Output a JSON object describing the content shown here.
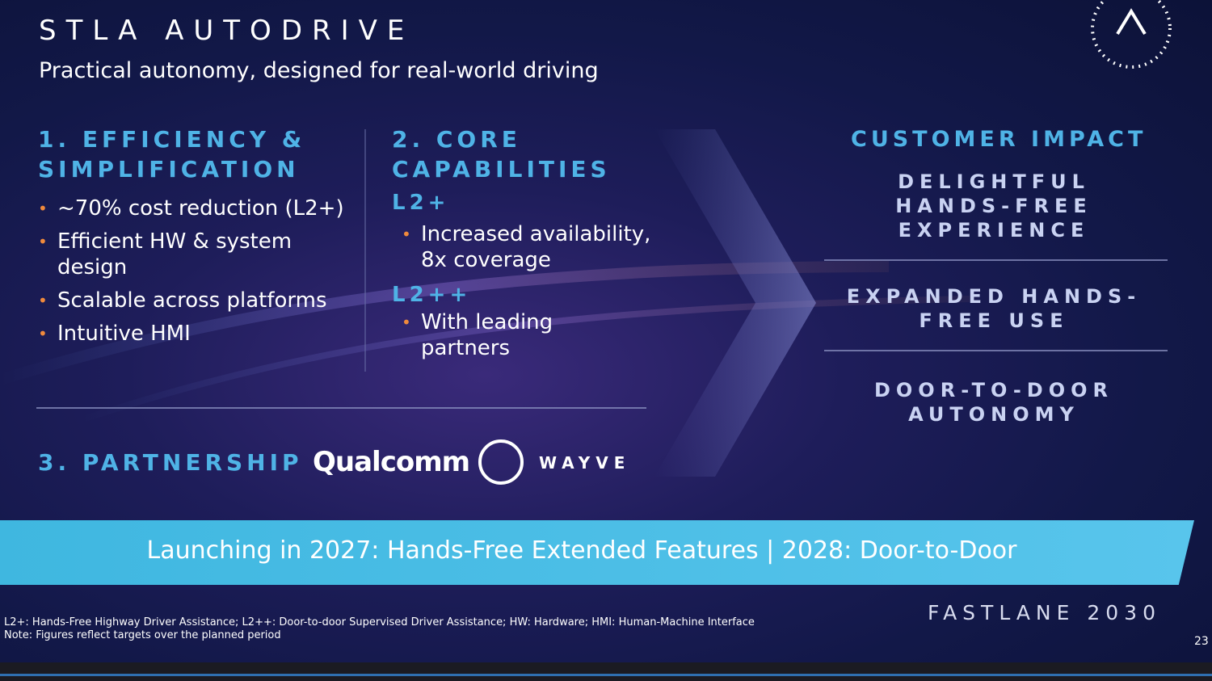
{
  "header": {
    "title": "STLA AUTODRIVE",
    "subtitle": "Practical autonomy, designed for real-world driving"
  },
  "sections": [
    {
      "heading": "1. EFFICIENCY & SIMPLIFICATION",
      "bullets": [
        "~70% cost reduction (L2+)",
        "Efficient HW & system design",
        "Scalable across platforms",
        "Intuitive HMI"
      ]
    },
    {
      "heading": "2. CORE CAPABILITIES",
      "levels": [
        {
          "label": "L2+",
          "bullets": [
            "Increased availability, 8x coverage"
          ]
        },
        {
          "label": "L2++",
          "bullets": [
            "With leading partners"
          ]
        }
      ]
    }
  ],
  "partnership": {
    "heading": "3. PARTNERSHIP",
    "partners": [
      "Qualcomm",
      "WAYVE"
    ]
  },
  "customer_impact": {
    "heading": "CUSTOMER IMPACT",
    "items": [
      "DELIGHTFUL HANDS-FREE EXPERIENCE",
      "EXPANDED HANDS-FREE USE",
      "DOOR-TO-DOOR AUTONOMY"
    ]
  },
  "banner": "Launching in 2027: Hands-Free Extended Features |  2028: Door-to-Door",
  "footnotes": [
    "L2+: Hands-Free Highway Driver Assistance; L2++: Door-to-door Supervised Driver Assistance; HW: Hardware; HMI: Human-Machine Interface",
    "Note: Figures reflect targets over the planned period"
  ],
  "brand": "FASTLANE 2030",
  "page_number": "23"
}
